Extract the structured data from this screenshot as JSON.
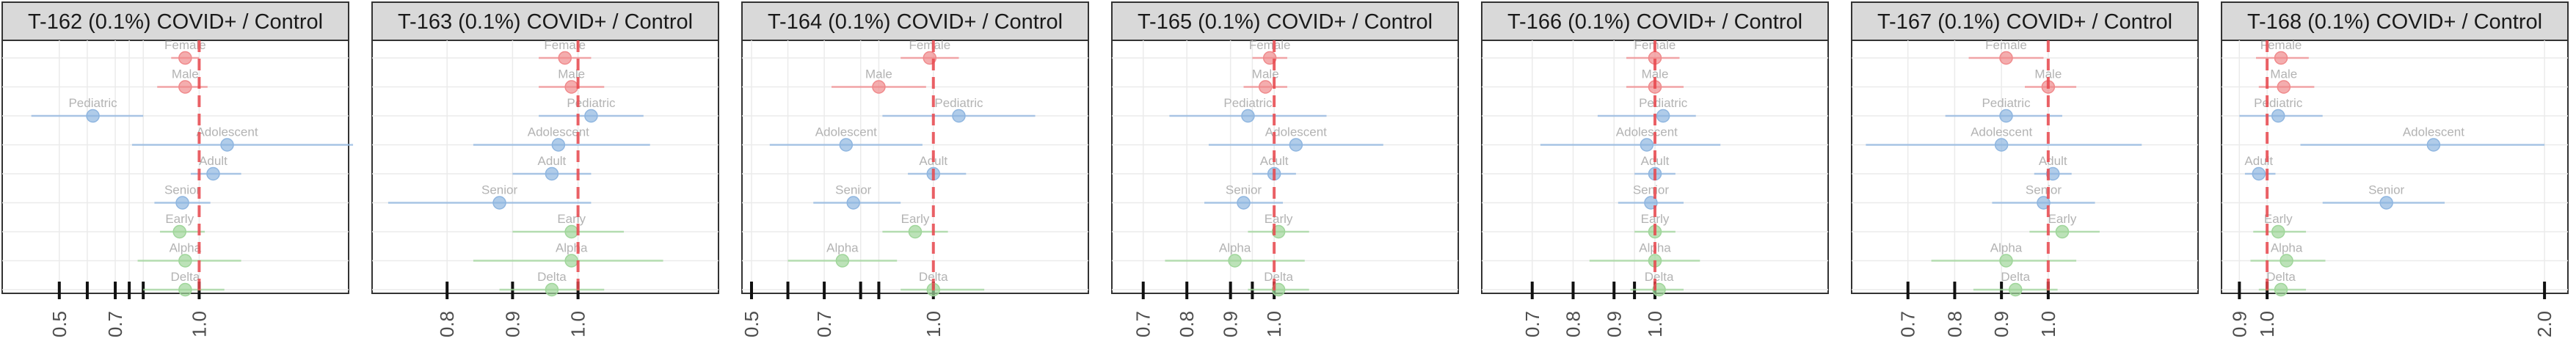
{
  "chart_data": {
    "type": "forest",
    "layout": "7 facet panels side by side",
    "reference_line": 1.0,
    "reference_line_color": "#e8474c",
    "group_colors": {
      "sex": "#f08a8c",
      "age": "#8fb6e0",
      "variant": "#9fd69a"
    },
    "rows": [
      "Female",
      "Male",
      "Pediatric",
      "Adolescent",
      "Adult",
      "Senior",
      "Early",
      "Alpha",
      "Delta"
    ],
    "row_groups": [
      "sex",
      "sex",
      "age",
      "age",
      "age",
      "age",
      "variant",
      "variant",
      "variant"
    ],
    "panels": [
      {
        "title": "T-162 (0.1%) COVID+ / Control",
        "xlim": [
          0.33,
          1.5
        ],
        "ticks": [
          0.5,
          0.6,
          0.7,
          0.75,
          0.8,
          1.0
        ],
        "tick_labels": [
          "0.5",
          "",
          "0.7",
          "",
          "",
          "1.0"
        ],
        "estimates": [
          0.95,
          0.95,
          0.62,
          1.1,
          1.05,
          0.94,
          0.93,
          0.95,
          0.95
        ],
        "lower": [
          0.9,
          0.85,
          0.4,
          0.76,
          0.97,
          0.84,
          0.86,
          0.78,
          0.8
        ],
        "upper": [
          1.0,
          1.03,
          0.8,
          1.55,
          1.15,
          1.04,
          1.02,
          1.15,
          1.09
        ]
      },
      {
        "title": "T-163 (0.1%) COVID+ / Control",
        "xlim": [
          0.7,
          1.2
        ],
        "ticks": [
          0.8,
          0.9,
          1.0
        ],
        "tick_labels": [
          "0.8",
          "0.9",
          "1.0"
        ],
        "estimates": [
          0.98,
          0.99,
          1.02,
          0.97,
          0.96,
          0.88,
          0.99,
          0.99,
          0.96
        ],
        "lower": [
          0.94,
          0.94,
          0.94,
          0.84,
          0.9,
          0.71,
          0.9,
          0.84,
          0.88
        ],
        "upper": [
          1.02,
          1.04,
          1.1,
          1.11,
          1.02,
          1.02,
          1.07,
          1.13,
          1.04
        ]
      },
      {
        "title": "T-164 (0.1%) COVID+ / Control",
        "xlim": [
          0.5,
          1.4
        ],
        "ticks": [
          0.5,
          0.6,
          0.7,
          0.8,
          0.85,
          1.0
        ],
        "tick_labels": [
          "0.5",
          "",
          "0.7",
          "",
          "",
          "1.0"
        ],
        "estimates": [
          0.99,
          0.85,
          1.07,
          0.76,
          1.0,
          0.78,
          0.95,
          0.75,
          1.0
        ],
        "lower": [
          0.91,
          0.72,
          0.86,
          0.55,
          0.93,
          0.67,
          0.86,
          0.6,
          0.91
        ],
        "upper": [
          1.07,
          0.98,
          1.28,
          0.97,
          1.09,
          0.91,
          1.04,
          0.9,
          1.14
        ]
      },
      {
        "title": "T-165 (0.1%) COVID+ / Control",
        "xlim": [
          0.65,
          1.4
        ],
        "ticks": [
          0.7,
          0.8,
          0.9,
          0.95,
          1.0
        ],
        "tick_labels": [
          "0.7",
          "0.8",
          "0.9",
          "",
          "1.0"
        ],
        "estimates": [
          0.99,
          0.98,
          0.94,
          1.05,
          1.0,
          0.93,
          1.01,
          0.91,
          1.01
        ],
        "lower": [
          0.95,
          0.93,
          0.76,
          0.85,
          0.95,
          0.84,
          0.94,
          0.75,
          0.94
        ],
        "upper": [
          1.03,
          1.03,
          1.12,
          1.25,
          1.05,
          1.02,
          1.08,
          1.07,
          1.08
        ]
      },
      {
        "title": "T-166 (0.1%) COVID+ / Control",
        "xlim": [
          0.6,
          1.4
        ],
        "ticks": [
          0.7,
          0.8,
          0.9,
          0.95,
          1.0
        ],
        "tick_labels": [
          "0.7",
          "0.8",
          "0.9",
          "",
          "1.0"
        ],
        "estimates": [
          1.0,
          1.0,
          1.02,
          0.98,
          1.0,
          0.99,
          1.0,
          1.0,
          1.01
        ],
        "lower": [
          0.93,
          0.93,
          0.86,
          0.72,
          0.95,
          0.91,
          0.95,
          0.84,
          0.94
        ],
        "upper": [
          1.06,
          1.07,
          1.1,
          1.16,
          1.05,
          1.07,
          1.05,
          1.11,
          1.07
        ]
      },
      {
        "title": "T-167 (0.1%) COVID+ / Control",
        "xlim": [
          0.6,
          1.3
        ],
        "ticks": [
          0.7,
          0.8,
          0.9,
          1.0
        ],
        "tick_labels": [
          "0.7",
          "0.8",
          "0.9",
          "1.0"
        ],
        "estimates": [
          0.91,
          1.0,
          0.91,
          0.9,
          1.01,
          0.99,
          1.03,
          0.91,
          0.93
        ],
        "lower": [
          0.83,
          0.95,
          0.78,
          0.61,
          0.97,
          0.88,
          0.96,
          0.75,
          0.84
        ],
        "upper": [
          0.99,
          1.06,
          1.03,
          1.2,
          1.05,
          1.1,
          1.11,
          1.06,
          1.02
        ]
      },
      {
        "title": "T-168 (0.1%) COVID+ / Control",
        "xlim": [
          0.87,
          2.05
        ],
        "ticks": [
          0.9,
          1.0,
          2.0
        ],
        "tick_labels": [
          "0.9",
          "1.0",
          "2.0"
        ],
        "estimates": [
          1.05,
          1.06,
          1.04,
          1.6,
          0.97,
          1.43,
          1.04,
          1.07,
          1.05
        ],
        "lower": [
          0.96,
          0.97,
          0.9,
          1.12,
          0.92,
          1.2,
          0.95,
          0.94,
          0.97
        ],
        "upper": [
          1.15,
          1.17,
          1.2,
          2.0,
          1.03,
          1.64,
          1.14,
          1.21,
          1.14
        ]
      }
    ]
  }
}
